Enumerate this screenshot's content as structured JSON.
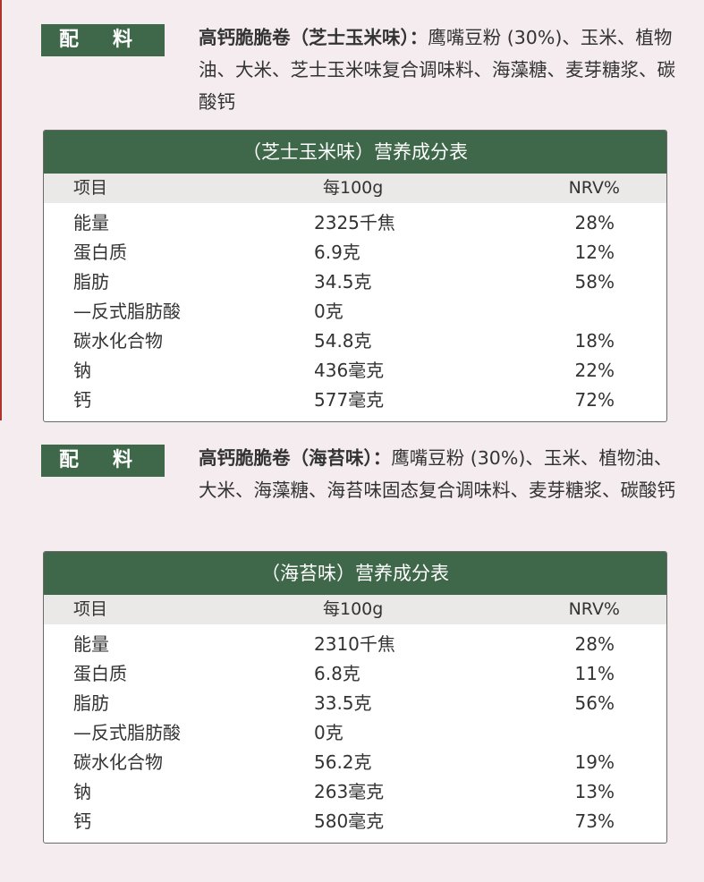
{
  "sections": [
    {
      "label_a": "配",
      "label_b": "料",
      "product_name": "高钙脆脆卷（芝士玉米味）：",
      "ingredients": "鹰嘴豆粉 (30%)、玉米、植物油、大米、芝士玉米味复合调味料、海藻糖、麦芽糖浆、碳酸钙",
      "table_title": "（芝士玉米味）营养成分表",
      "headers": [
        "项目",
        "每100g",
        "NRV%"
      ],
      "rows": [
        {
          "item": "能量",
          "per100g": "2325千焦",
          "nrv": "28%"
        },
        {
          "item": "蛋白质",
          "per100g": "6.9克",
          "nrv": "12%"
        },
        {
          "item": "脂肪",
          "per100g": "34.5克",
          "nrv": "58%"
        },
        {
          "item": "—反式脂肪酸",
          "per100g": "0克",
          "nrv": ""
        },
        {
          "item": "碳水化合物",
          "per100g": "54.8克",
          "nrv": "18%"
        },
        {
          "item": "钠",
          "per100g": "436毫克",
          "nrv": "22%"
        },
        {
          "item": "钙",
          "per100g": "577毫克",
          "nrv": "72%"
        }
      ]
    },
    {
      "label_a": "配",
      "label_b": "料",
      "product_name": "高钙脆脆卷（海苔味）：",
      "ingredients": "鹰嘴豆粉 (30%)、玉米、植物油、大米、海藻糖、海苔味固态复合调味料、麦芽糖浆、碳酸钙",
      "table_title": "（海苔味）营养成分表",
      "headers": [
        "项目",
        "每100g",
        "NRV%"
      ],
      "rows": [
        {
          "item": "能量",
          "per100g": "2310千焦",
          "nrv": "28%"
        },
        {
          "item": "蛋白质",
          "per100g": "6.8克",
          "nrv": "11%"
        },
        {
          "item": "脂肪",
          "per100g": "33.5克",
          "nrv": "56%"
        },
        {
          "item": "—反式脂肪酸",
          "per100g": "0克",
          "nrv": ""
        },
        {
          "item": "碳水化合物",
          "per100g": "56.2克",
          "nrv": "19%"
        },
        {
          "item": "钠",
          "per100g": "263毫克",
          "nrv": "13%"
        },
        {
          "item": "钙",
          "per100g": "580毫克",
          "nrv": "73%"
        }
      ]
    }
  ]
}
